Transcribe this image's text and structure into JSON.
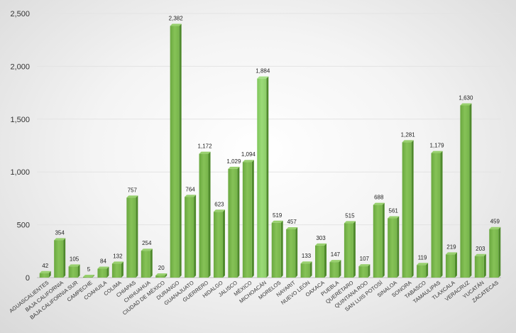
{
  "chart_data": {
    "type": "bar",
    "title": "",
    "xlabel": "",
    "ylabel": "",
    "ylim": [
      0,
      2500
    ],
    "yticks": [
      "0",
      "500",
      "1,000",
      "1,500",
      "2,000",
      "2,500"
    ],
    "grid": true,
    "legend": "none",
    "colors": {
      "bar": "#7ab84a",
      "bar_highlight": "#8fd068",
      "bar_dark": "#4f8a2c"
    },
    "categories": [
      "AGUASCALIENTES",
      "BAJA CALIFORNIA",
      "BAJA CALIFORNIA SUR",
      "CAMPECHE",
      "COAHUILA",
      "COLIMA",
      "CHIAPAS",
      "CHIHUAHUA",
      "CIUDAD DE MÉXICO",
      "DURANGO",
      "GUANAJUATO",
      "GUERRERO",
      "HIDALGO",
      "JALISCO",
      "MÉXICO",
      "MICHOACÁN",
      "MORELOS",
      "NAYARIT",
      "NUEVO LEÓN",
      "OAXACA",
      "PUEBLA",
      "QUERÉTARO",
      "QUINTANA ROO",
      "SAN LUIS POTOSÍ",
      "SINALOA",
      "SONORA",
      "TABASCO",
      "TAMAULIPAS",
      "TLAXCALA",
      "VERACRUZ",
      "YUCATÁN",
      "ZACATECAS"
    ],
    "values": [
      42,
      354,
      105,
      5,
      84,
      132,
      757,
      254,
      20,
      2382,
      764,
      1172,
      623,
      1029,
      1094,
      1884,
      519,
      457,
      133,
      303,
      147,
      515,
      107,
      688,
      561,
      1281,
      119,
      1179,
      219,
      1630,
      203,
      459
    ],
    "labels": [
      "42",
      "354",
      "105",
      "5",
      "84",
      "132",
      "757",
      "254",
      "20",
      "2,382",
      "764",
      "1,172",
      "623",
      "1,029",
      "1,094",
      "1,884",
      "519",
      "457",
      "133",
      "303",
      "147",
      "515",
      "107",
      "688",
      "561",
      "1,281",
      "119",
      "1,179",
      "219",
      "1,630",
      "203",
      "459"
    ]
  }
}
